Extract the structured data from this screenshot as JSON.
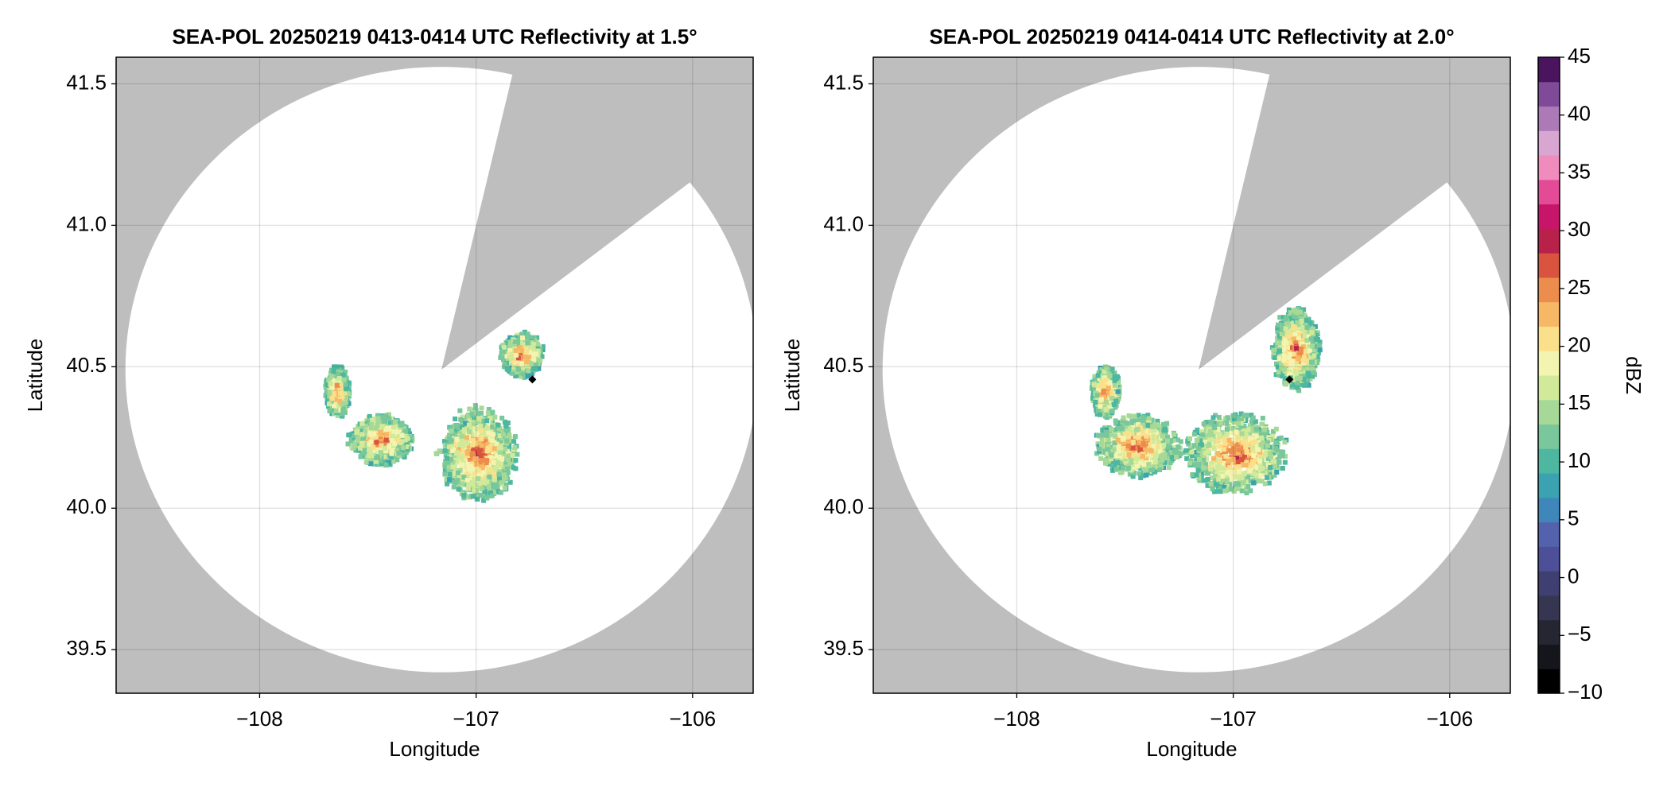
{
  "chart_data": [
    {
      "type": "radar",
      "title": "SEA-POL 20250219 0413-0414 UTC Reflectivity at 1.5°",
      "x_label": "Longitude",
      "y_label": "Latitude",
      "xlim": [
        -108.663,
        -105.72
      ],
      "ylim": [
        39.346,
        41.594
      ],
      "xticks": [
        {
          "value": -108,
          "label": "−108"
        },
        {
          "value": -107,
          "label": "−107"
        },
        {
          "value": -106,
          "label": "−106"
        }
      ],
      "yticks": [
        41.5,
        {
          "value": 41.0,
          "label": "41.0"
        },
        40.5,
        {
          "value": 40.0,
          "label": "40.0"
        },
        39.5
      ],
      "grid": true,
      "marker": {
        "x": -106.74,
        "y": 40.455
      }
    },
    {
      "type": "radar",
      "title": "SEA-POL 20250219 0414-0414 UTC Reflectivity at 2.0°",
      "x_label": "Longitude",
      "y_label": "Latitude",
      "xlim": [
        -108.663,
        -105.72
      ],
      "ylim": [
        39.346,
        41.594
      ],
      "xticks": [
        {
          "value": -108,
          "label": "−108"
        },
        {
          "value": -107,
          "label": "−107"
        },
        {
          "value": -106,
          "label": "−106"
        }
      ],
      "yticks": [
        41.5,
        {
          "value": 41.0,
          "label": "41.0"
        },
        40.5,
        {
          "value": 40.0,
          "label": "40.0"
        },
        39.5
      ],
      "grid": true,
      "marker": {
        "x": -106.74,
        "y": 40.455
      }
    }
  ],
  "colorbar": {
    "label": "dBZ",
    "clim": [
      -10,
      45
    ],
    "ticks": [
      {
        "value": -10,
        "label": "−10"
      },
      {
        "value": -5,
        "label": "−5"
      },
      0,
      5,
      10,
      15,
      20,
      25,
      30,
      35,
      40,
      45
    ],
    "colors": [
      "#000000",
      "#15151c",
      "#262633",
      "#363652",
      "#3f3f72",
      "#4d4f98",
      "#5462ad",
      "#3f86bb",
      "#3aa2b0",
      "#4db79f",
      "#79c79b",
      "#a6d997",
      "#d0ea9a",
      "#f2f4b0",
      "#fbe08c",
      "#f6b865",
      "#ec8c4d",
      "#d9543e",
      "#b7214a",
      "#c71669",
      "#e34b97",
      "#ef8cbd",
      "#d9a5d1",
      "#ad7ab8",
      "#7f4b98",
      "#4a145e"
    ]
  }
}
